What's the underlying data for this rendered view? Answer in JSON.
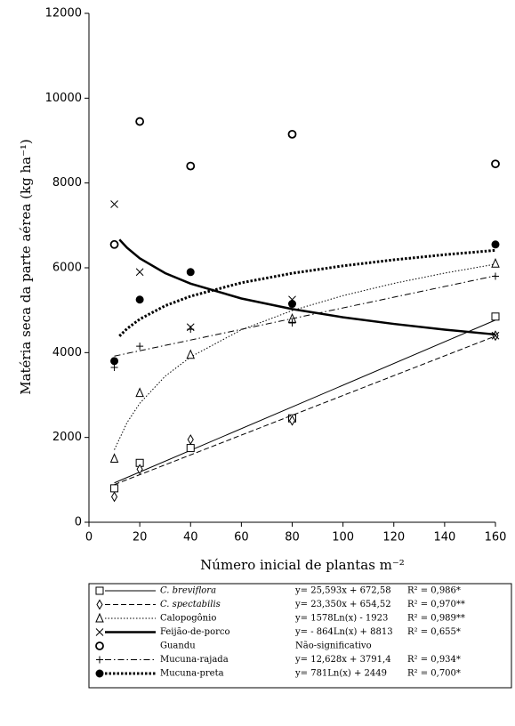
{
  "chart_data": {
    "type": "scatter",
    "xlabel": "Número inicial de plantas m⁻²",
    "ylabel": "Matéria seca da parte aérea (kg ha⁻¹)",
    "xlim": [
      0,
      160
    ],
    "xticks": [
      0,
      20,
      40,
      60,
      80,
      100,
      120,
      140,
      160
    ],
    "ylim": [
      0,
      12000
    ],
    "yticks": [
      0,
      2000,
      4000,
      6000,
      8000,
      10000,
      12000
    ],
    "x": [
      10,
      20,
      40,
      80,
      160
    ],
    "series": [
      {
        "name": "C. breviflora",
        "italic": true,
        "color": "#000000",
        "marker": "square",
        "line_style": "solid-thin",
        "values": [
          800,
          1400,
          1750,
          2450,
          4850
        ],
        "fit_x": [
          10,
          160
        ],
        "fit_values": [
          928.5,
          4767.5
        ],
        "equation": "y= 25,593x + 672,58",
        "r2": "R² = 0,986*"
      },
      {
        "name": "C. spectabilis",
        "italic": true,
        "color": "#000000",
        "marker": "diamond",
        "line_style": "dashed",
        "values": [
          600,
          1250,
          1950,
          2400,
          4400
        ],
        "fit_x": [
          10,
          160
        ],
        "fit_values": [
          888.0,
          4390.5
        ],
        "equation": "y= 23,350x + 654,52",
        "r2": "R² = 0,970**"
      },
      {
        "name": "Calopogônio",
        "italic": false,
        "color": "#000000",
        "marker": "triangle",
        "line_style": "dotted",
        "values": [
          1500,
          3050,
          3950,
          4800,
          6100
        ],
        "fit_x": [
          10,
          15,
          20,
          30,
          40,
          60,
          80,
          100,
          120,
          140,
          160
        ],
        "fit_values": [
          1710,
          2350,
          2804,
          3444,
          3898,
          4538,
          4992,
          5344,
          5632,
          5875,
          6086
        ],
        "equation": "y= 1578Ln(x) - 1923",
        "r2": "R² = 0,989**"
      },
      {
        "name": "Feijão-de-porco",
        "italic": false,
        "color": "#000000",
        "marker": "x",
        "line_style": "thick",
        "values": [
          7500,
          5900,
          4600,
          5250,
          4400
        ],
        "fit_x": [
          12,
          15,
          20,
          30,
          40,
          60,
          80,
          100,
          120,
          140,
          160
        ],
        "fit_values": [
          6666,
          6473,
          6224,
          5874,
          5626,
          5276,
          5027,
          4834,
          4677,
          4543,
          4428
        ],
        "equation": "y= - 864Ln(x) + 8813",
        "r2": "R² = 0,655*"
      },
      {
        "name": "Guandu",
        "italic": false,
        "color": "#000000",
        "marker": "open-circle",
        "line_style": "none",
        "values": [
          6550,
          9450,
          8400,
          9150,
          8450
        ],
        "equation": "Não-significativo"
      },
      {
        "name": "Mucuna-rajada",
        "italic": false,
        "color": "#000000",
        "marker": "plus",
        "line_style": "dash-dot",
        "values": [
          3650,
          4150,
          4550,
          4700,
          5800
        ],
        "fit_x": [
          10,
          160
        ],
        "fit_values": [
          3917.7,
          5811.9
        ],
        "equation": "y= 12,628x + 3791,4",
        "r2": "R² = 0,934*"
      },
      {
        "name": "Mucuna-preta",
        "italic": false,
        "color": "#000000",
        "marker": "filled-circle",
        "line_style": "thick-dotted",
        "values": [
          3800,
          5250,
          5900,
          5150,
          6550
        ],
        "fit_x": [
          12,
          15,
          20,
          30,
          40,
          60,
          80,
          100,
          120,
          140,
          160
        ],
        "fit_values": [
          4390,
          4564,
          4789,
          5105,
          5330,
          5647,
          5871,
          6046,
          6188,
          6309,
          6412
        ],
        "equation": "y= 781Ln(x) + 2449",
        "r2": "R² = 0,700*"
      }
    ]
  }
}
